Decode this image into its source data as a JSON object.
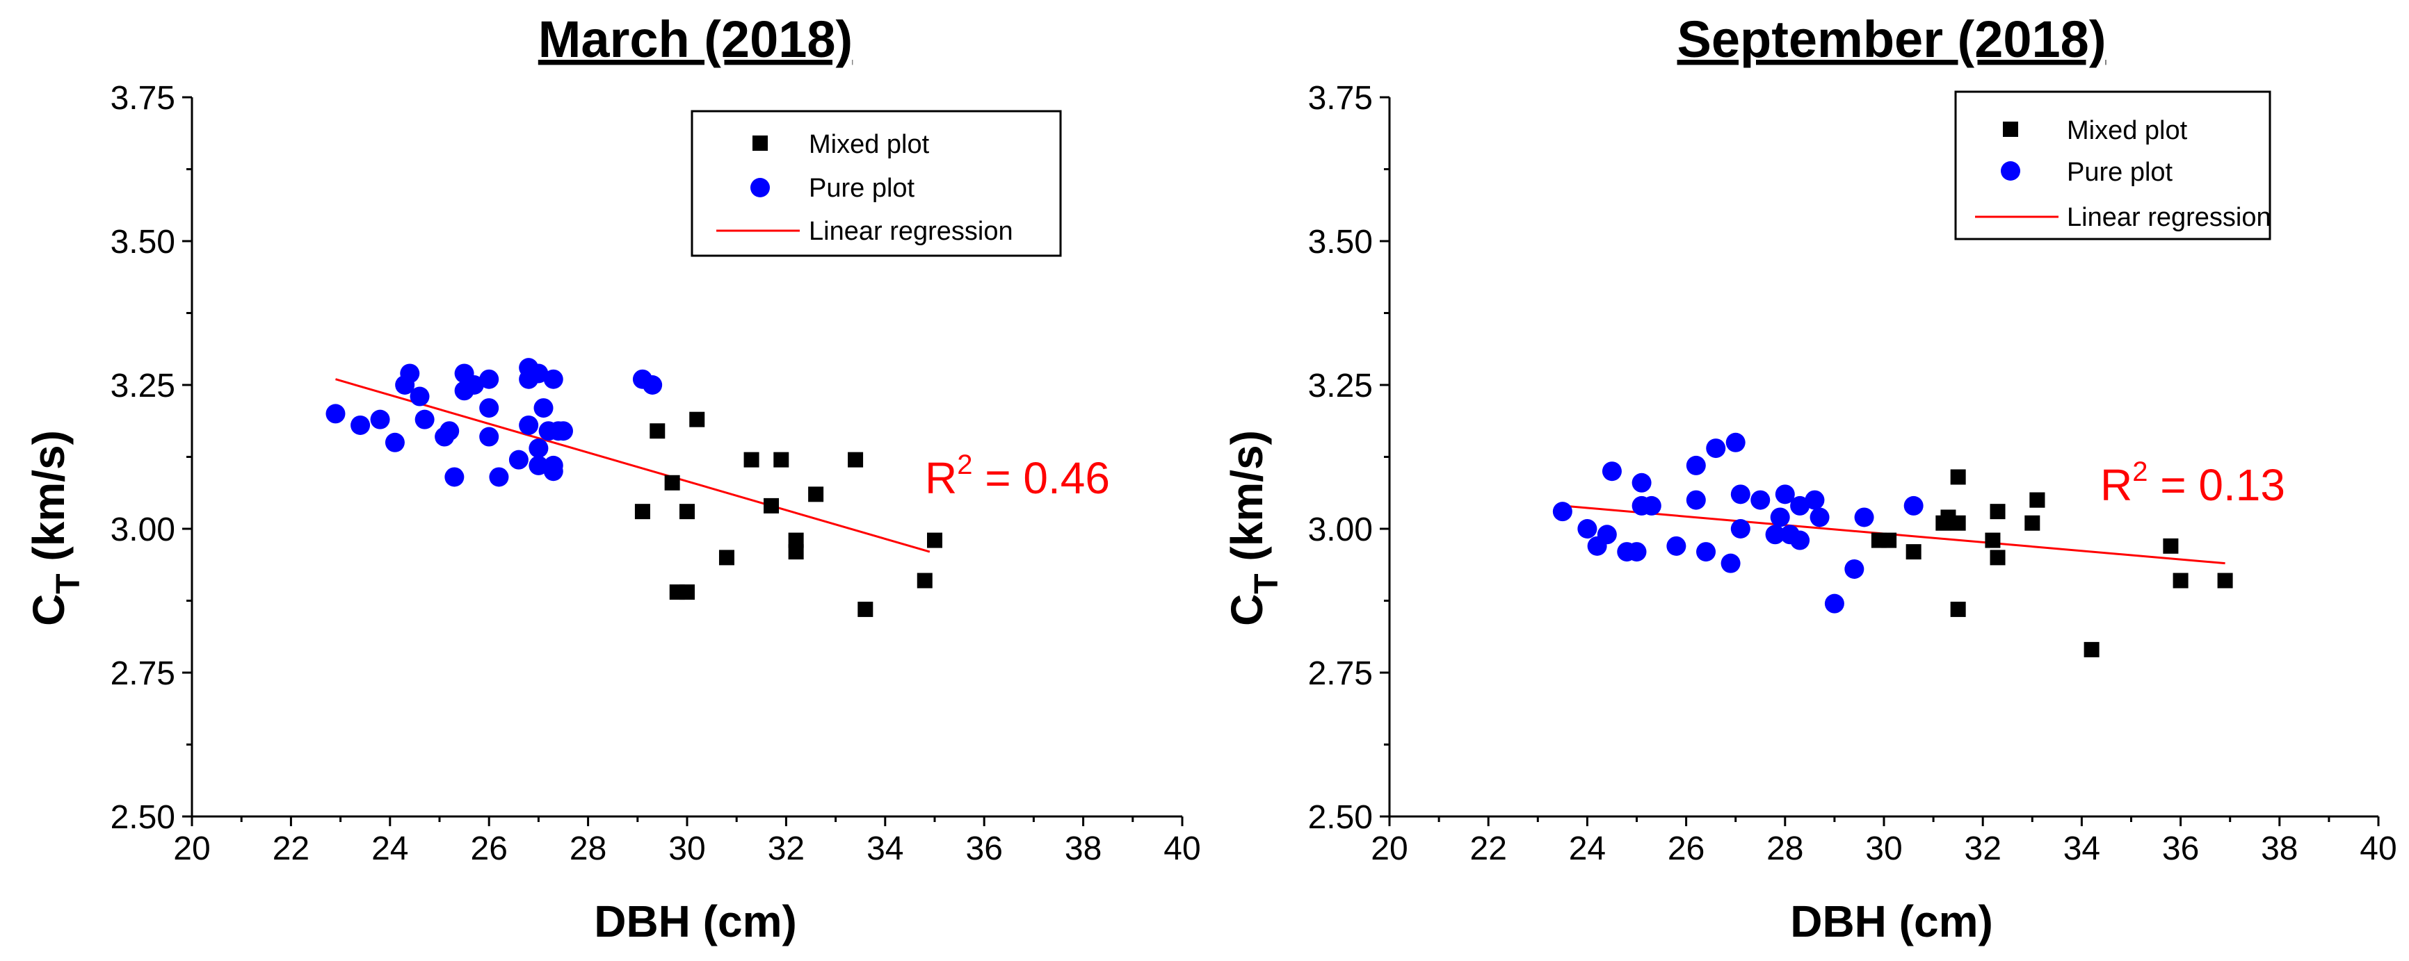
{
  "chart_data": [
    {
      "type": "scatter",
      "title": "March (2018)",
      "xlabel": "DBH (cm)",
      "ylabel": "C",
      "ylabel_sub": "T",
      "ylabel_unit": " (km/s)",
      "xlim": [
        20,
        40
      ],
      "ylim": [
        2.5,
        3.75
      ],
      "xticks": [
        "20",
        "22",
        "24",
        "26",
        "28",
        "30",
        "32",
        "34",
        "36",
        "38",
        "40"
      ],
      "yticks": [
        "2.50",
        "2.75",
        "3.00",
        "3.25",
        "3.50",
        "3.75"
      ],
      "legend": {
        "position": "top-right",
        "entries": [
          {
            "label": "Mixed plot",
            "marker": "square",
            "color": "#000000"
          },
          {
            "label": "Pure plot",
            "marker": "circle",
            "color": "#0000ff"
          },
          {
            "label": "Linear regression",
            "marker": "line",
            "color": "#ff0000"
          }
        ]
      },
      "annotation": {
        "base": "R",
        "sup": "2",
        "rest": " = 0.46"
      },
      "series": [
        {
          "name": "Mixed plot",
          "marker": "square",
          "color": "#000000",
          "points": [
            [
              29.1,
              3.03
            ],
            [
              29.4,
              3.17
            ],
            [
              29.7,
              3.08
            ],
            [
              29.8,
              2.89
            ],
            [
              30.0,
              2.89
            ],
            [
              30.0,
              3.03
            ],
            [
              30.2,
              3.19
            ],
            [
              30.8,
              2.95
            ],
            [
              31.3,
              3.12
            ],
            [
              31.7,
              3.04
            ],
            [
              31.9,
              3.12
            ],
            [
              32.2,
              2.98
            ],
            [
              32.2,
              2.96
            ],
            [
              32.6,
              3.06
            ],
            [
              33.4,
              3.12
            ],
            [
              33.6,
              2.86
            ],
            [
              34.8,
              2.91
            ],
            [
              35.0,
              2.98
            ]
          ]
        },
        {
          "name": "Pure plot",
          "marker": "circle",
          "color": "#0000ff",
          "points": [
            [
              22.9,
              3.2
            ],
            [
              23.4,
              3.18
            ],
            [
              23.8,
              3.19
            ],
            [
              24.1,
              3.15
            ],
            [
              24.3,
              3.25
            ],
            [
              24.4,
              3.27
            ],
            [
              24.6,
              3.23
            ],
            [
              24.7,
              3.19
            ],
            [
              25.1,
              3.16
            ],
            [
              25.2,
              3.17
            ],
            [
              25.3,
              3.09
            ],
            [
              25.5,
              3.24
            ],
            [
              25.5,
              3.27
            ],
            [
              25.7,
              3.25
            ],
            [
              26.0,
              3.16
            ],
            [
              26.0,
              3.21
            ],
            [
              26.0,
              3.26
            ],
            [
              26.2,
              3.09
            ],
            [
              26.6,
              3.12
            ],
            [
              26.8,
              3.28
            ],
            [
              26.8,
              3.18
            ],
            [
              26.8,
              3.26
            ],
            [
              27.0,
              3.27
            ],
            [
              27.0,
              3.14
            ],
            [
              27.0,
              3.11
            ],
            [
              27.1,
              3.21
            ],
            [
              27.2,
              3.17
            ],
            [
              27.3,
              3.1
            ],
            [
              27.3,
              3.11
            ],
            [
              27.3,
              3.26
            ],
            [
              27.4,
              3.17
            ],
            [
              27.5,
              3.17
            ],
            [
              29.1,
              3.26
            ],
            [
              29.3,
              3.25
            ]
          ]
        },
        {
          "name": "Linear regression",
          "type": "line",
          "color": "#ff0000",
          "points": [
            [
              22.9,
              3.26
            ],
            [
              34.9,
              2.96
            ]
          ]
        }
      ]
    },
    {
      "type": "scatter",
      "title": "September (2018)",
      "xlabel": "DBH (cm)",
      "ylabel": "C",
      "ylabel_sub": "T",
      "ylabel_unit": " (km/s)",
      "xlim": [
        20,
        40
      ],
      "ylim": [
        2.5,
        3.75
      ],
      "xticks": [
        "20",
        "22",
        "24",
        "26",
        "28",
        "30",
        "32",
        "34",
        "36",
        "38",
        "40"
      ],
      "yticks": [
        "2.50",
        "2.75",
        "3.00",
        "3.25",
        "3.50",
        "3.75"
      ],
      "legend": {
        "position": "top-right",
        "entries": [
          {
            "label": "Mixed plot",
            "marker": "square",
            "color": "#000000"
          },
          {
            "label": "Pure plot",
            "marker": "circle",
            "color": "#0000ff"
          },
          {
            "label": "Linear regression",
            "marker": "line",
            "color": "#ff0000"
          }
        ]
      },
      "annotation": {
        "base": "R",
        "sup": "2",
        "rest": " = 0.13"
      },
      "series": [
        {
          "name": "Mixed plot",
          "marker": "square",
          "color": "#000000",
          "points": [
            [
              29.9,
              2.98
            ],
            [
              30.1,
              2.98
            ],
            [
              30.6,
              2.96
            ],
            [
              31.2,
              3.01
            ],
            [
              31.3,
              3.02
            ],
            [
              31.5,
              3.01
            ],
            [
              31.5,
              3.09
            ],
            [
              31.5,
              2.86
            ],
            [
              32.2,
              2.98
            ],
            [
              32.3,
              2.95
            ],
            [
              32.3,
              3.03
            ],
            [
              33.0,
              3.01
            ],
            [
              33.1,
              3.05
            ],
            [
              33.1,
              3.05
            ],
            [
              34.2,
              2.79
            ],
            [
              35.8,
              2.97
            ],
            [
              36.0,
              2.91
            ],
            [
              36.9,
              2.91
            ]
          ]
        },
        {
          "name": "Pure plot",
          "marker": "circle",
          "color": "#0000ff",
          "points": [
            [
              23.5,
              3.03
            ],
            [
              24.0,
              3.0
            ],
            [
              24.2,
              2.97
            ],
            [
              24.4,
              2.99
            ],
            [
              24.5,
              3.1
            ],
            [
              24.8,
              2.96
            ],
            [
              25.0,
              2.96
            ],
            [
              25.1,
              3.04
            ],
            [
              25.1,
              3.08
            ],
            [
              25.3,
              3.04
            ],
            [
              25.8,
              2.97
            ],
            [
              26.2,
              3.05
            ],
            [
              26.2,
              3.11
            ],
            [
              26.4,
              2.96
            ],
            [
              26.6,
              3.14
            ],
            [
              26.9,
              2.94
            ],
            [
              27.0,
              3.15
            ],
            [
              27.1,
              3.0
            ],
            [
              27.1,
              3.06
            ],
            [
              27.5,
              3.05
            ],
            [
              27.8,
              2.99
            ],
            [
              27.9,
              3.02
            ],
            [
              28.0,
              3.06
            ],
            [
              28.1,
              2.99
            ],
            [
              28.3,
              3.04
            ],
            [
              28.3,
              2.98
            ],
            [
              28.6,
              3.05
            ],
            [
              28.7,
              3.02
            ],
            [
              29.0,
              2.87
            ],
            [
              29.4,
              2.93
            ],
            [
              29.6,
              3.02
            ],
            [
              30.6,
              3.04
            ]
          ]
        },
        {
          "name": "Linear regression",
          "type": "line",
          "color": "#ff0000",
          "points": [
            [
              23.5,
              3.04
            ],
            [
              36.9,
              2.94
            ]
          ]
        }
      ]
    }
  ]
}
